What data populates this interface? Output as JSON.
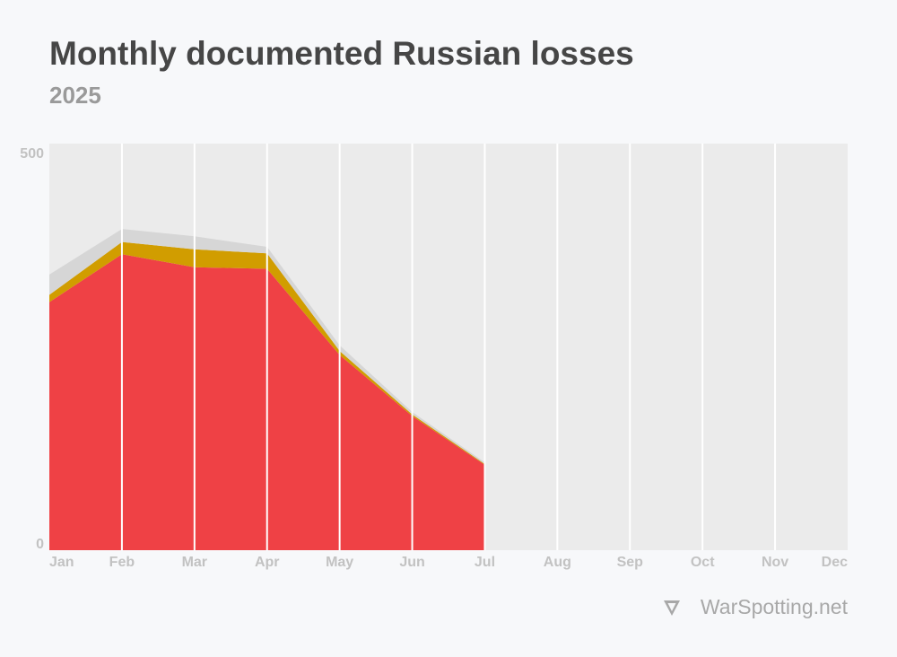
{
  "title": "Monthly documented Russian losses",
  "subtitle": "2025",
  "source": "WarSpotting.net",
  "chart_data": {
    "type": "area",
    "stacked": true,
    "categories": [
      "Jan",
      "Feb",
      "Mar",
      "Apr",
      "May",
      "Jun",
      "Jul",
      "Aug",
      "Sep",
      "Oct",
      "Nov",
      "Dec"
    ],
    "series": [
      {
        "color": "#ef4145",
        "values": [
          305,
          364,
          348,
          346,
          240,
          165,
          105,
          null,
          null,
          null,
          null,
          null
        ]
      },
      {
        "color": "#d19d00",
        "values": [
          9,
          15,
          22,
          19,
          5,
          2,
          1,
          null,
          null,
          null,
          null,
          null
        ]
      },
      {
        "color": "#d6d6d6",
        "values": [
          25,
          16,
          16,
          8,
          7,
          3,
          2,
          null,
          null,
          null,
          null,
          null
        ]
      }
    ],
    "ylim": [
      0,
      500
    ],
    "yticks": [
      0,
      500
    ],
    "grid": true,
    "background": "#ebebeb",
    "gridcolor": "#ffffff"
  }
}
